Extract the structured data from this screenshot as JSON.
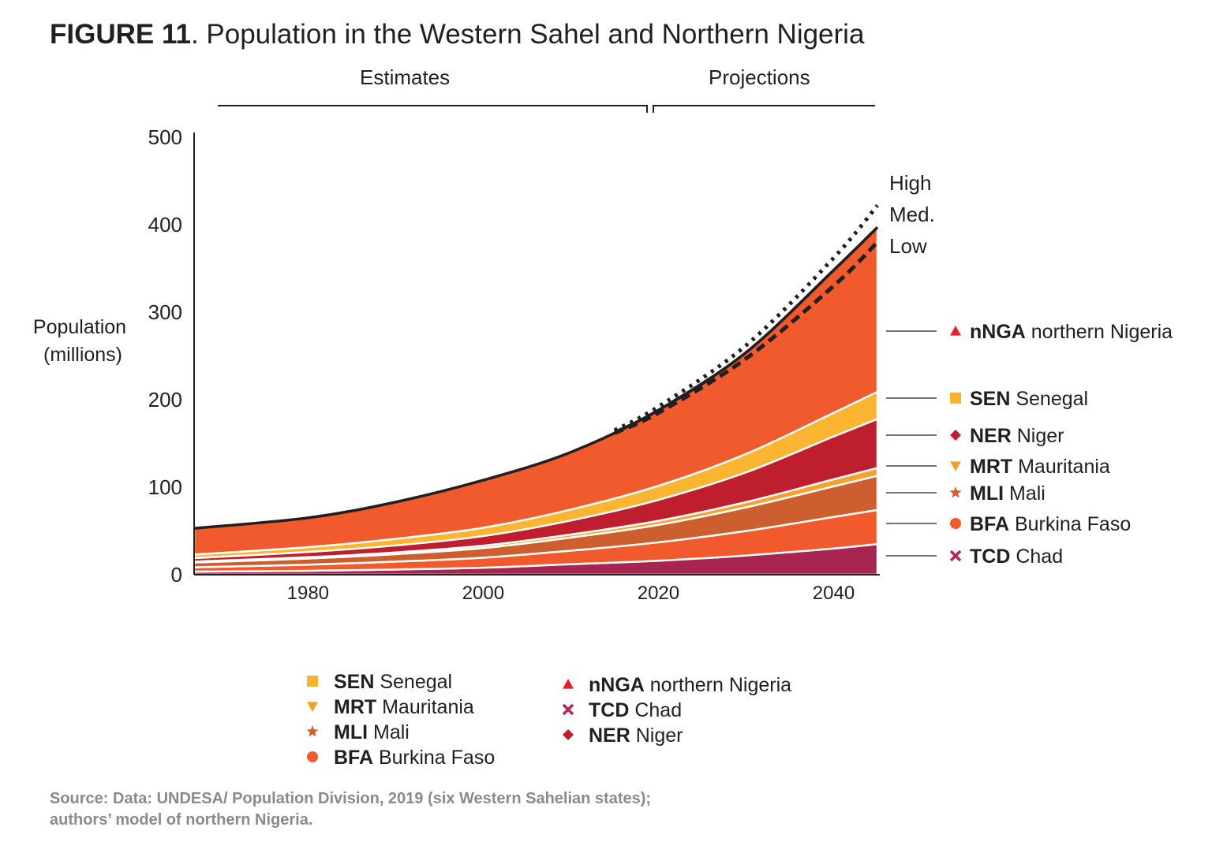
{
  "title": {
    "figure": "FIGURE 11",
    "text": ". Population in the Western Sahel and Northern Nigeria"
  },
  "periods": {
    "estimates": "Estimates",
    "projections": "Projections"
  },
  "source": {
    "line1": "Source: Data: UNDESA/ Population Division, 2019 (six Western Sahelian states);",
    "line2": "authors’ model of northern Nigeria."
  },
  "chart_data": {
    "type": "area",
    "stacked": true,
    "title": "Population in the Western Sahel and Northern Nigeria",
    "ylabel": [
      "Population",
      "(millions)"
    ],
    "xlabel": "",
    "xlim": [
      1967,
      2045
    ],
    "ylim": [
      0,
      500
    ],
    "x_ticks": [
      1980,
      2000,
      2020,
      2040
    ],
    "y_ticks": [
      0,
      100,
      200,
      300,
      400,
      500
    ],
    "grid": false,
    "x": [
      1967,
      1980,
      1990,
      2000,
      2010,
      2020,
      2030,
      2040,
      2045
    ],
    "series": [
      {
        "code": "TCD",
        "name": "Chad",
        "color": "#a92551",
        "marker": "x",
        "marker_color": "#b8235a",
        "values": [
          3.5,
          4.5,
          6,
          8,
          12,
          16,
          22,
          30,
          35
        ]
      },
      {
        "code": "BFA",
        "name": "Burkina Faso",
        "color": "#f05a2c",
        "marker": "circle",
        "marker_color": "#f05a2c",
        "values": [
          5,
          7,
          9,
          11.5,
          15.5,
          21,
          28,
          36,
          39
        ]
      },
      {
        "code": "MLI",
        "name": "Mali",
        "color": "#cd5f2e",
        "marker": "star",
        "marker_color": "#d0612f",
        "values": [
          5.5,
          7,
          8.5,
          11,
          15,
          20,
          27,
          35,
          39
        ]
      },
      {
        "code": "MRT",
        "name": "Mauritania",
        "color": "#f7a12c",
        "marker": "triangle-down",
        "marker_color": "#f6a02a",
        "values": [
          1,
          1.5,
          2,
          2.7,
          3.5,
          4.6,
          6,
          8,
          9
        ]
      },
      {
        "code": "NER",
        "name": "Niger",
        "color": "#be1e2e",
        "marker": "diamond",
        "marker_color": "#be1e2d",
        "values": [
          4,
          6,
          8,
          11,
          16,
          24,
          34,
          49,
          56
        ]
      },
      {
        "code": "SEN",
        "name": "Senegal",
        "color": "#fbb530",
        "marker": "square",
        "marker_color": "#fbb32f",
        "values": [
          4,
          5.5,
          7.5,
          9.5,
          12.5,
          16,
          21,
          27,
          31
        ]
      },
      {
        "code": "nNGA",
        "name": "northern Nigeria",
        "color": "#f05a2d",
        "marker": "triangle-up",
        "marker_color": "#e5202a",
        "values": [
          30,
          33.5,
          42,
          54.3,
          65.5,
          86.4,
          116,
          163,
          188
        ]
      }
    ],
    "scenarios": [
      {
        "name": "High",
        "style": "dotted",
        "x": [
          2015,
          2020,
          2030,
          2040,
          2045
        ],
        "values": [
          165,
          192,
          262,
          362,
          422
        ]
      },
      {
        "name": "Med.",
        "style": "solid",
        "x": [
          2015,
          2020,
          2030,
          2040,
          2045
        ],
        "values": [
          163,
          188,
          254,
          348,
          397
        ]
      },
      {
        "name": "Low",
        "style": "dashed",
        "x": [
          2015,
          2020,
          2030,
          2040,
          2045
        ],
        "values": [
          162,
          185,
          247,
          330,
          380
        ]
      }
    ],
    "right_labels_order": [
      "nNGA",
      "SEN",
      "NER",
      "MRT",
      "MLI",
      "BFA",
      "TCD"
    ],
    "legend": {
      "placement": "bottom",
      "col1": [
        "SEN",
        "MRT",
        "MLI",
        "BFA"
      ],
      "col2": [
        "nNGA",
        "TCD",
        "NER"
      ]
    }
  }
}
